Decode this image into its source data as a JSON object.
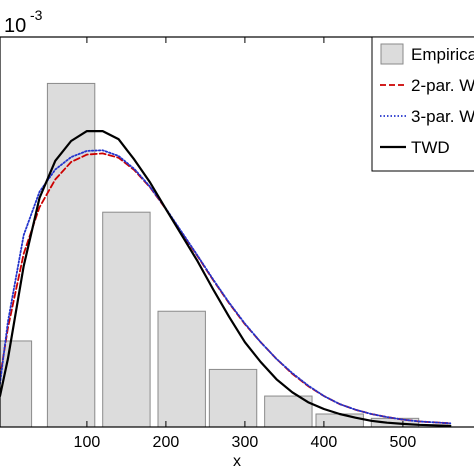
{
  "chart_data": {
    "type": "bar",
    "scale_label": {
      "base": "10",
      "exponent": "-3"
    },
    "xlabel": "x",
    "ylabel": "",
    "xlim": [
      -10,
      590
    ],
    "ylim": [
      0,
      6.3
    ],
    "x_ticks": [
      100,
      200,
      300,
      400,
      500
    ],
    "y_ticks": [],
    "grid": false,
    "legend_position": "top-right",
    "histogram": {
      "name": "Empirical",
      "color": "#dcdcdc",
      "edge_color": "#8a8a8a",
      "bins": [
        {
          "x0": -10,
          "x1": 30,
          "value": 1.39
        },
        {
          "x0": 50,
          "x1": 110,
          "value": 5.55
        },
        {
          "x0": 120,
          "x1": 180,
          "value": 3.47
        },
        {
          "x0": 190,
          "x1": 250,
          "value": 1.87
        },
        {
          "x0": 255,
          "x1": 315,
          "value": 0.93
        },
        {
          "x0": 325,
          "x1": 385,
          "value": 0.5
        },
        {
          "x0": 390,
          "x1": 450,
          "value": 0.21
        },
        {
          "x0": 460,
          "x1": 520,
          "value": 0.14
        }
      ]
    },
    "series": [
      {
        "name": "2-par. W",
        "color": "#cc0000",
        "dash": "6,3",
        "x": [
          -10,
          0,
          20,
          40,
          60,
          80,
          100,
          120,
          140,
          160,
          180,
          200,
          220,
          240,
          260,
          280,
          300,
          320,
          340,
          360,
          380,
          400,
          420,
          440,
          460,
          480,
          500,
          520,
          560
        ],
        "y": [
          0.8,
          1.6,
          2.8,
          3.55,
          4.0,
          4.28,
          4.4,
          4.42,
          4.35,
          4.15,
          3.87,
          3.52,
          3.14,
          2.76,
          2.37,
          2.0,
          1.66,
          1.37,
          1.1,
          0.86,
          0.66,
          0.5,
          0.37,
          0.28,
          0.21,
          0.16,
          0.12,
          0.09,
          0.06
        ]
      },
      {
        "name": "3-par. W",
        "color": "#2233cc",
        "dash": "1.5,2",
        "x": [
          -10,
          0,
          20,
          40,
          60,
          80,
          100,
          120,
          140,
          160,
          180,
          200,
          220,
          240,
          260,
          280,
          300,
          320,
          340,
          360,
          380,
          400,
          420,
          440,
          460,
          480,
          500,
          520,
          560
        ],
        "y": [
          0.7,
          1.7,
          3.1,
          3.8,
          4.16,
          4.36,
          4.46,
          4.47,
          4.38,
          4.17,
          3.88,
          3.53,
          3.15,
          2.77,
          2.38,
          2.01,
          1.67,
          1.37,
          1.1,
          0.87,
          0.67,
          0.5,
          0.37,
          0.28,
          0.21,
          0.16,
          0.12,
          0.09,
          0.06
        ]
      },
      {
        "name": "TWD",
        "color": "#000000",
        "dash": "",
        "x": [
          -10,
          0,
          20,
          40,
          60,
          80,
          100,
          120,
          140,
          160,
          180,
          200,
          220,
          240,
          260,
          280,
          300,
          320,
          340,
          360,
          380,
          400,
          420,
          440,
          460,
          480,
          500,
          520,
          560
        ],
        "y": [
          0.5,
          1.1,
          2.6,
          3.7,
          4.3,
          4.62,
          4.78,
          4.78,
          4.65,
          4.32,
          3.95,
          3.52,
          3.1,
          2.68,
          2.22,
          1.78,
          1.37,
          1.05,
          0.77,
          0.56,
          0.4,
          0.29,
          0.21,
          0.15,
          0.1,
          0.07,
          0.05,
          0.035,
          0.02
        ]
      }
    ]
  }
}
